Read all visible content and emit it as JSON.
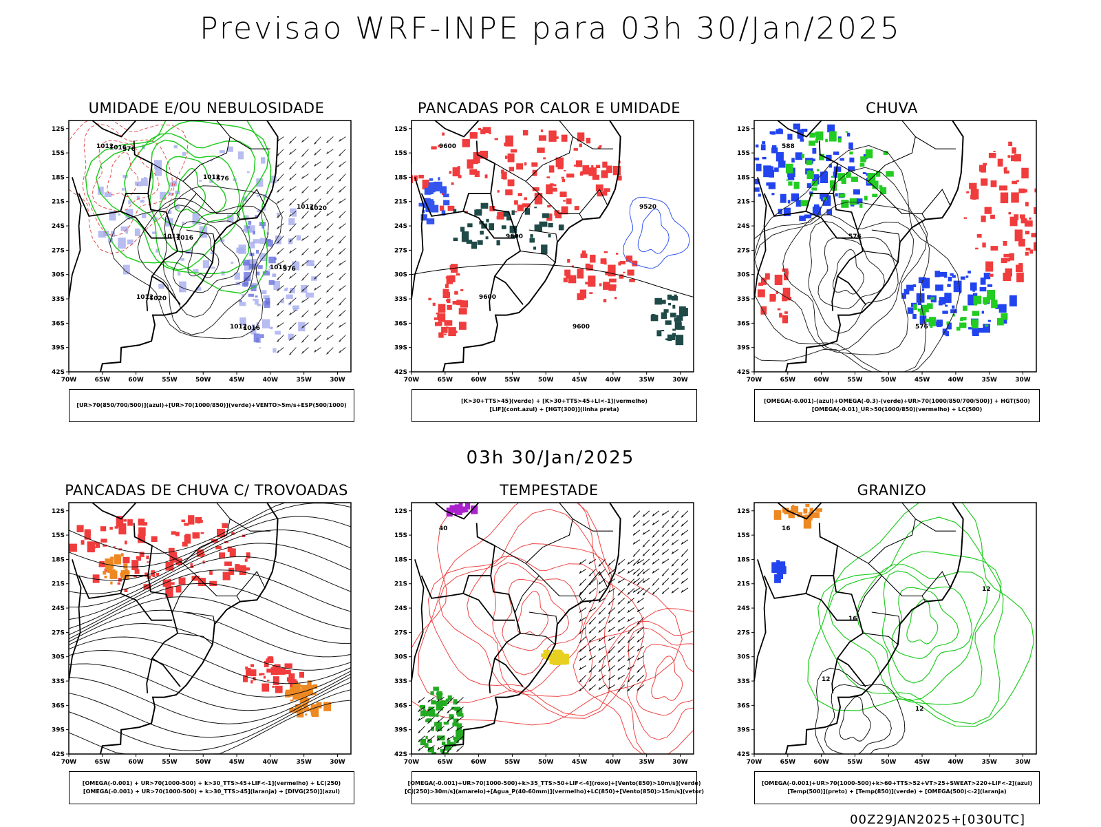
{
  "title": "Previsao WRF-INPE  para 03h 30/Jan/2025",
  "mid_label": "03h 30/Jan/2025",
  "footer": "00Z29JAN2025+[030UTC]",
  "lat_ticks": [
    "12S",
    "15S",
    "18S",
    "21S",
    "24S",
    "27S",
    "30S",
    "33S",
    "36S",
    "39S",
    "42S"
  ],
  "lon_ticks": [
    "70W",
    "65W",
    "60W",
    "55W",
    "50W",
    "45W",
    "40W",
    "35W",
    "30W"
  ],
  "colors": {
    "red": "#f03c3c",
    "green": "#22cc22",
    "blue": "#2244ee",
    "lavender": "#aab0ee",
    "dark": "#1f4a48",
    "orange": "#ee8822",
    "purple": "#aa22cc",
    "yellow": "#e8d020"
  },
  "chart_data": [
    {
      "type": "map",
      "title": "UMIDADE E/OU NEBULOSIDADE",
      "legend": [
        "[UR>70(850/700/500)](azul)+[UR>70(1000/850)](verde)+VENTO>5m/s+ESP(500/1000)"
      ],
      "contour_labels": [
        "1012",
        "1012",
        "1012",
        "1012",
        "1012",
        "1012",
        "1016",
        "1016",
        "1016",
        "1016",
        "1020",
        "1020",
        "576",
        "576",
        "576"
      ]
    },
    {
      "type": "map",
      "title": "PANCADAS POR CALOR E UMIDADE",
      "legend": [
        "[K>30+TTS>45](verde)  +  [K>30+TTS>45+LI<-1](vermelho)",
        "[LIF](cont.azul)  +  [HGT(300)](linha preta)"
      ],
      "contour_labels": [
        "9600",
        "9600",
        "9600",
        "9520",
        "9600"
      ]
    },
    {
      "type": "map",
      "title": "CHUVA",
      "legend": [
        "[OMEGA(-0.001)-(azul)+OMEGA(-0.3)-(verde)+UR>70(1000/850/700/500)]  +  HGT(500)",
        "[OMEGA(-0.01)_UR>50(1000/850)(vermelho)  +  LC(500)"
      ],
      "contour_labels": [
        "588",
        "576",
        "576"
      ]
    },
    {
      "type": "map",
      "title": "PANCADAS DE CHUVA C/ TROVOADAS",
      "legend": [
        "[OMEGA(-0.001)  +  UR>70(1000-500)  +  k>30_TTS>45+LIF<-1](vermelho)  +  LC(250)",
        "[OMEGA(-0.001)  +  UR>70(1000-500)  +  k>30_TTS>45](laranja)  +  [DIVG(250)](azul)"
      ],
      "contour_labels": []
    },
    {
      "type": "map",
      "title": "TEMPESTADE",
      "legend": [
        "[OMEGA(-0.001)+UR>70(1000-500)+k>35_TTS>50+LIF<-4](roxo)+[Vento(850)>10m/s](verde)",
        "[CJ(250)>30m/s](amarelo)+[Agua_P(40-60mm)](vermelho)+LC(850)+[Vento(850)>15m/s](vetor)"
      ],
      "contour_labels": [
        "40"
      ]
    },
    {
      "type": "map",
      "title": "GRANIZO",
      "legend": [
        "[OMEGA(-0.001)+UR>70(1000-500)+k>60+TTS>52+VT>25+SWEAT>220+LIF<-2](azul)",
        "[Temp(500)](preto)  +  [Temp(850)](verde)  +  [OMEGA(500)<-2](laranja)"
      ],
      "contour_labels": [
        "16",
        "16",
        "12",
        "12",
        "12"
      ]
    }
  ]
}
